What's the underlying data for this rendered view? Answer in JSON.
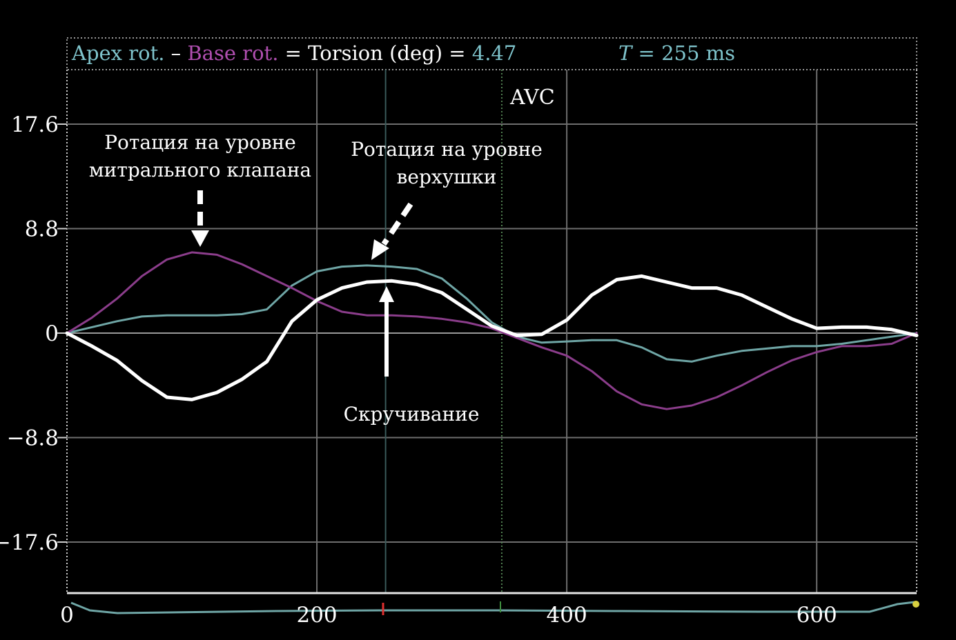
{
  "chart_data": {
    "type": "line",
    "header": {
      "apex_label": "Apex rot.",
      "dash": " – ",
      "base_label": "Base rot.",
      "torsion_label": " = Torsion (deg) = ",
      "torsion_value": "4.47",
      "t_label": "T",
      "t_value": " = 255 ms"
    },
    "xlim": [
      0,
      680
    ],
    "ylim": [
      -21,
      21
    ],
    "x_ticks": [
      0,
      200,
      400,
      600
    ],
    "x_tick_labels": [
      "0",
      "200",
      "400",
      "600"
    ],
    "y_ticks": [
      17.6,
      8.8,
      0,
      -8.8,
      -17.6
    ],
    "y_tick_labels": [
      "17.6",
      "8.8",
      "0",
      "−8.8",
      "−17.6"
    ],
    "grid": true,
    "markers": {
      "avc_x": 348,
      "avc_label": "AVC",
      "cursor_x": 255
    },
    "annotations": {
      "base_text": [
        "Ротация на уровне",
        "митрального клапана"
      ],
      "apex_text": [
        "Ротация на уровне",
        "верхушки"
      ],
      "twist_text": "Скручивание"
    },
    "colors": {
      "apex": "#6fa6a6",
      "base": "#8b3d8b",
      "torsion": "#ffffff",
      "header_apex": "#7fc4cc",
      "header_base": "#b04fb0",
      "grid": "#6e6e6e"
    },
    "series": [
      {
        "key": "apex",
        "x": [
          0,
          20,
          40,
          60,
          80,
          100,
          120,
          140,
          160,
          180,
          200,
          220,
          240,
          260,
          280,
          300,
          320,
          340,
          360,
          380,
          400,
          420,
          440,
          460,
          480,
          500,
          520,
          540,
          560,
          580,
          600,
          620,
          640,
          660,
          680
        ],
        "y": [
          0,
          0.5,
          1.0,
          1.4,
          1.5,
          1.5,
          1.5,
          1.6,
          2.0,
          4.0,
          5.2,
          5.6,
          5.7,
          5.6,
          5.4,
          4.6,
          2.9,
          0.9,
          -0.3,
          -0.8,
          -0.7,
          -0.6,
          -0.6,
          -1.2,
          -2.2,
          -2.4,
          -1.9,
          -1.5,
          -1.3,
          -1.1,
          -1.1,
          -0.9,
          -0.6,
          -0.3,
          0
        ]
      },
      {
        "key": "base",
        "x": [
          0,
          20,
          40,
          60,
          80,
          100,
          120,
          140,
          160,
          180,
          200,
          220,
          240,
          260,
          280,
          300,
          320,
          340,
          360,
          380,
          400,
          420,
          440,
          460,
          480,
          500,
          520,
          540,
          560,
          580,
          600,
          620,
          640,
          660,
          680
        ],
        "y": [
          0,
          1.3,
          2.9,
          4.8,
          6.2,
          6.8,
          6.6,
          5.8,
          4.8,
          3.8,
          2.7,
          1.8,
          1.5,
          1.5,
          1.4,
          1.2,
          0.9,
          0.4,
          -0.4,
          -1.2,
          -1.9,
          -3.2,
          -4.9,
          -6.0,
          -6.4,
          -6.1,
          -5.4,
          -4.4,
          -3.3,
          -2.3,
          -1.6,
          -1.1,
          -1.1,
          -0.9,
          0
        ]
      },
      {
        "key": "torsion",
        "x": [
          0,
          20,
          40,
          60,
          80,
          100,
          120,
          140,
          160,
          180,
          200,
          220,
          240,
          260,
          280,
          300,
          320,
          340,
          360,
          380,
          400,
          420,
          440,
          460,
          480,
          500,
          520,
          540,
          560,
          580,
          600,
          620,
          640,
          660,
          680
        ],
        "y": [
          0,
          -1.1,
          -2.3,
          -4.0,
          -5.4,
          -5.6,
          -5.0,
          -3.9,
          -2.4,
          1.0,
          2.8,
          3.8,
          4.3,
          4.4,
          4.1,
          3.4,
          2.0,
          0.6,
          -0.2,
          -0.1,
          1.1,
          3.2,
          4.5,
          4.8,
          4.3,
          3.8,
          3.8,
          3.2,
          2.2,
          1.2,
          0.4,
          0.5,
          0.5,
          0.3,
          -0.2
        ]
      }
    ]
  }
}
